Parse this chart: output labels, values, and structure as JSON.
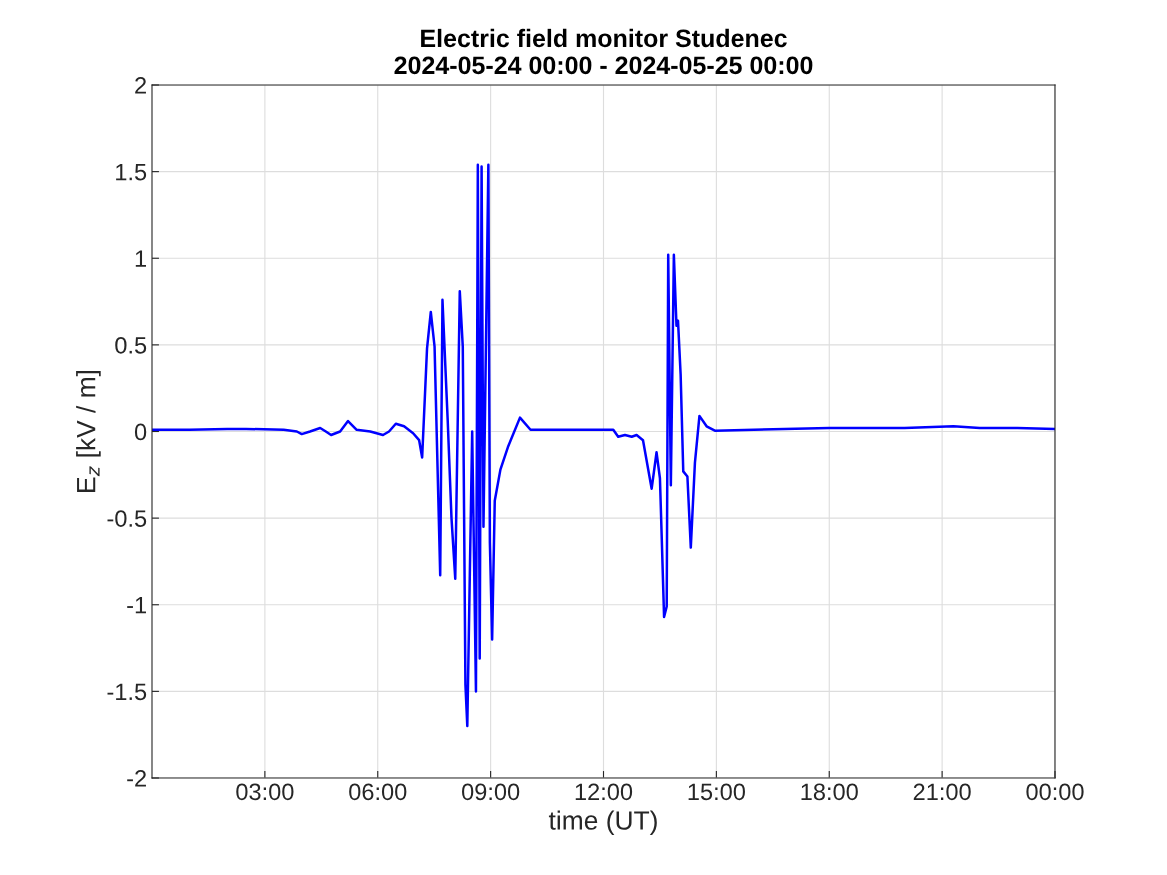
{
  "chart_data": {
    "type": "line",
    "title": "Electric field monitor Studenec\n2024-05-24 00:00 - 2024-05-25 00:00",
    "xlabel": "time (UT)",
    "ylabel": "E$_{z}$ [kV / m]",
    "xlim": [
      0,
      24
    ],
    "xticks": [
      {
        "value": 3,
        "label": "03:00"
      },
      {
        "value": 6,
        "label": "06:00"
      },
      {
        "value": 9,
        "label": "09:00"
      },
      {
        "value": 12,
        "label": "12:00"
      },
      {
        "value": 15,
        "label": "15:00"
      },
      {
        "value": 18,
        "label": "18:00"
      },
      {
        "value": 21,
        "label": "21:00"
      },
      {
        "value": 24,
        "label": "00:00"
      }
    ],
    "ylim": [
      -2,
      2
    ],
    "yticks": [
      -2,
      -1.5,
      -1,
      -0.5,
      0,
      0.5,
      1,
      1.5,
      2
    ],
    "grid": true,
    "line_style": "solid",
    "marker": "none",
    "series": [
      {
        "color": "#0000ff",
        "x": [
          0,
          1,
          2,
          2.5,
          3.5,
          3.85,
          3.98,
          4.2,
          4.47,
          4.62,
          4.76,
          5.0,
          5.21,
          5.44,
          5.8,
          6.14,
          6.3,
          6.48,
          6.7,
          6.94,
          7.1,
          7.18,
          7.31,
          7.41,
          7.51,
          7.66,
          7.72,
          7.86,
          7.96,
          8.06,
          8.18,
          8.26,
          8.33,
          8.38,
          8.51,
          8.61,
          8.66,
          8.71,
          8.76,
          8.81,
          8.94,
          8.98,
          9.04,
          9.11,
          9.26,
          9.46,
          9.78,
          10.06,
          11,
          11.91,
          12.26,
          12.39,
          12.57,
          12.75,
          12.88,
          13.05,
          13.28,
          13.41,
          13.5,
          13.55,
          13.61,
          13.68,
          13.72,
          13.79,
          13.87,
          13.94,
          13.98,
          14.05,
          14.12,
          14.23,
          14.32,
          14.43,
          14.55,
          14.74,
          14.96,
          16,
          18,
          20,
          21.3,
          22,
          23,
          24
        ],
        "values": [
          0.01,
          0.01,
          0.015,
          0.015,
          0.01,
          0.0,
          -0.015,
          0.0,
          0.02,
          0.0,
          -0.02,
          0.0,
          0.06,
          0.01,
          0.0,
          -0.02,
          0.0,
          0.045,
          0.03,
          -0.01,
          -0.05,
          -0.15,
          0.48,
          0.69,
          0.49,
          -0.83,
          0.76,
          0.06,
          -0.5,
          -0.85,
          0.81,
          0.49,
          -1.46,
          -1.7,
          0.0,
          -1.5,
          1.54,
          -1.31,
          1.53,
          -0.55,
          1.54,
          -0.64,
          -1.2,
          -0.4,
          -0.22,
          -0.09,
          0.08,
          0.01,
          0.01,
          0.01,
          0.01,
          -0.03,
          -0.02,
          -0.03,
          -0.02,
          -0.05,
          -0.33,
          -0.12,
          -0.27,
          -0.63,
          -1.07,
          -1.01,
          1.02,
          -0.31,
          1.02,
          0.61,
          0.64,
          0.33,
          -0.23,
          -0.26,
          -0.67,
          -0.18,
          0.09,
          0.03,
          0.005,
          0.01,
          0.02,
          0.02,
          0.03,
          0.02,
          0.02,
          0.015
        ]
      }
    ]
  }
}
